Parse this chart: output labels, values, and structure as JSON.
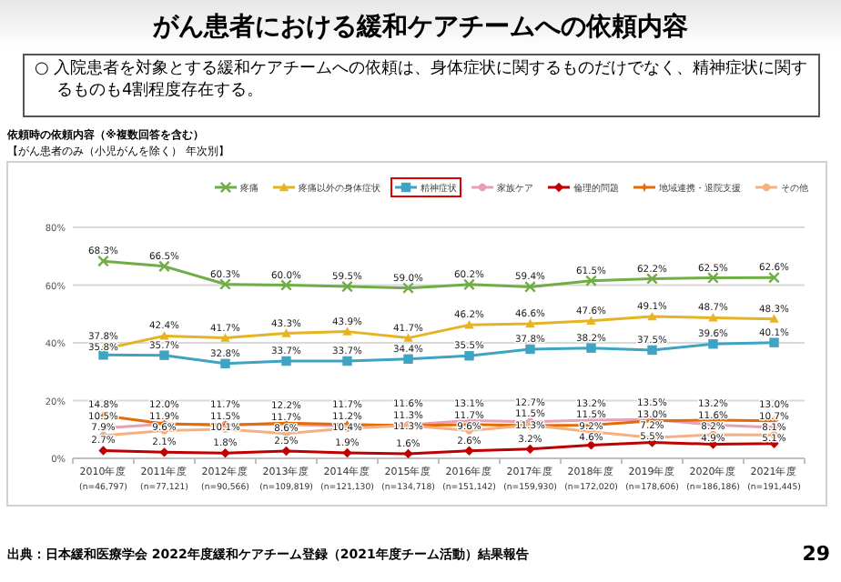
{
  "chart_data": {
    "type": "line",
    "title": "がん患者における緩和ケアチームへの依頼内容",
    "subtitle": "○ 入院患者を対象とする緩和ケアチームへの依頼は、身体症状に関するものだけでなく、精神症状に関するものも4割程度存在する。",
    "annotations": [
      "依頼時の依頼内容（※複数回答を含む）",
      "【がん患者のみ（小児がんを除く） 年次別】",
      "出典：日本緩和医療学会 2022年度緩和ケアチーム登録（2021年度チーム活動）結果報告",
      "29"
    ],
    "categories": [
      "2010年度\n(n=46,797)",
      "2011年度\n(n=77,121)",
      "2012年度\n(n=90,566)",
      "2013年度\n(n=109,819)",
      "2014年度\n(n=121,130)",
      "2015年度\n(n=134,718)",
      "2016年度\n(n=151,142)",
      "2017年度\n(n=159,930)",
      "2018年度\n(n=172,020)",
      "2019年度\n(n=178,606)",
      "2020年度\n(n=186,186)",
      "2021年度\n(n=191,445)"
    ],
    "ylim": [
      0,
      80
    ],
    "yticks": [
      {
        "value": 0,
        "label": "0%"
      },
      {
        "value": 20,
        "label": "20%"
      },
      {
        "value": 40,
        "label": "40%"
      },
      {
        "value": 60,
        "label": "60%"
      },
      {
        "value": 80,
        "label": "80%"
      }
    ],
    "grid": "y",
    "legend": "top",
    "series": [
      {
        "name": "疼痛",
        "color": "#70ad47",
        "marker": "cross",
        "values": [
          68.3,
          66.5,
          60.3,
          60.0,
          59.5,
          59.0,
          60.2,
          59.4,
          61.5,
          62.2,
          62.5,
          62.6
        ],
        "value_labels": [
          "68.3%",
          "66.5%",
          "60.3%",
          "60.0%",
          "59.5%",
          "59.0%",
          "60.2%",
          "59.4%",
          "61.5%",
          "62.2%",
          "62.5%",
          "62.6%"
        ]
      },
      {
        "name": "疼痛以外の身体症状",
        "color": "#e6b422",
        "marker": "triangle",
        "values": [
          37.8,
          42.4,
          41.7,
          43.3,
          43.9,
          41.7,
          46.2,
          46.6,
          47.6,
          49.1,
          48.7,
          48.3
        ],
        "value_labels": [
          "37.8%",
          "42.4%",
          "41.7%",
          "43.3%",
          "43.9%",
          "41.7%",
          "46.2%",
          "46.6%",
          "47.6%",
          "49.1%",
          "48.7%",
          "48.3%"
        ]
      },
      {
        "name": "精神症状",
        "color": "#3fa3c4",
        "marker": "square",
        "values": [
          35.8,
          35.7,
          32.8,
          33.7,
          33.7,
          34.4,
          35.5,
          37.8,
          38.2,
          37.5,
          39.6,
          40.1
        ],
        "value_labels": [
          "35.8%",
          "35.7%",
          "32.8%",
          "33.7%",
          "33.7%",
          "34.4%",
          "35.5%",
          "37.8%",
          "38.2%",
          "37.5%",
          "39.6%",
          "40.1%"
        ]
      },
      {
        "name": "家族ケア",
        "color": "#e8a0b4",
        "marker": "circle",
        "values": [
          10.5,
          11.9,
          11.7,
          11.7,
          11.2,
          11.6,
          13.1,
          12.7,
          13.2,
          13.5,
          11.6,
          10.7
        ],
        "value_labels": [
          "10.5%",
          "11.9%",
          "11.7%",
          "11.7%",
          "11.2%",
          "11.6%",
          "13.1%",
          "12.7%",
          "13.2%",
          "13.5%",
          "11.6%",
          "10.7%"
        ]
      },
      {
        "name": "倫理的問題",
        "color": "#c00000",
        "marker": "diamond",
        "values": [
          2.7,
          2.1,
          1.8,
          2.5,
          1.9,
          1.6,
          2.6,
          3.2,
          4.6,
          5.5,
          4.9,
          5.1
        ],
        "value_labels": [
          "2.7%",
          "2.1%",
          "1.8%",
          "2.5%",
          "1.9%",
          "1.6%",
          "2.6%",
          "3.2%",
          "4.6%",
          "5.5%",
          "4.9%",
          "5.1%"
        ]
      },
      {
        "name": "地域連携・退院支援",
        "color": "#e36c09",
        "marker": "star",
        "values": [
          14.8,
          12.0,
          11.5,
          12.2,
          11.7,
          11.3,
          11.7,
          11.3,
          11.5,
          13.0,
          13.2,
          13.0
        ],
        "value_labels": [
          "14.8%",
          "12.0%",
          "11.5%",
          "12.2%",
          "11.7%",
          "11.3%",
          "11.7%",
          "11.3%",
          "11.5%",
          "13.0%",
          "13.2%",
          "13.0%"
        ]
      },
      {
        "name": "その他",
        "color": "#f4b183",
        "marker": "circle",
        "values": [
          7.9,
          9.6,
          10.1,
          8.6,
          10.4,
          11.3,
          9.6,
          11.5,
          9.2,
          7.2,
          8.2,
          8.1
        ],
        "value_labels": [
          "7.9%",
          "9.6%",
          "10.1%",
          "8.6%",
          "10.4%",
          "11.3%",
          "9.6%",
          "11.5%",
          "9.2%",
          "7.2%",
          "8.2%",
          "8.1%"
        ]
      }
    ]
  }
}
